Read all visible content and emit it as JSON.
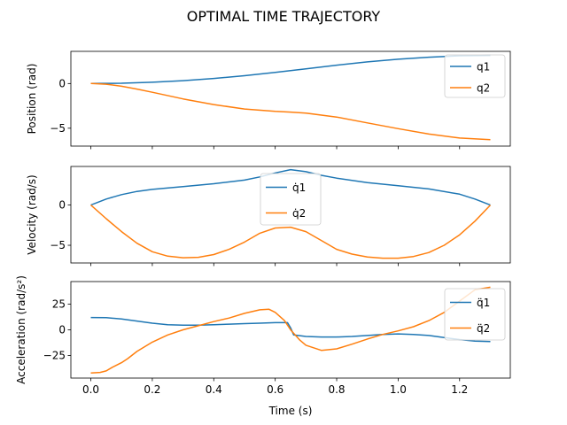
{
  "figure": {
    "title": "OPTIMAL TIME TRAJECTORY",
    "xlabel": "Time (s)"
  },
  "colors": {
    "series1": "#1f77b4",
    "series2": "#ff7f0e",
    "axes": "#000000",
    "legend_border": "#cccccc"
  },
  "chart_data": [
    {
      "type": "line",
      "title": "",
      "xlabel": "",
      "ylabel": "Position (rad)",
      "xlim": [
        -0.065,
        1.365
      ],
      "ylim": [
        -7.0,
        3.6
      ],
      "xticks": [
        0.0,
        0.2,
        0.4,
        0.6,
        0.8,
        1.0,
        1.2
      ],
      "xtick_labels": [
        "",
        "",
        "",
        "",
        "",
        "",
        ""
      ],
      "yticks": [
        -5,
        0
      ],
      "ytick_labels": [
        "−5",
        "0"
      ],
      "legend": {
        "placement": "top-right",
        "entries": [
          "q1",
          "q2"
        ]
      },
      "grid": false,
      "series": [
        {
          "name": "q1",
          "x": [
            0.0,
            0.1,
            0.2,
            0.3,
            0.4,
            0.5,
            0.6,
            0.65,
            0.7,
            0.8,
            0.9,
            1.0,
            1.1,
            1.2,
            1.3
          ],
          "y": [
            0.0,
            0.03,
            0.14,
            0.32,
            0.57,
            0.88,
            1.25,
            1.45,
            1.65,
            2.05,
            2.42,
            2.72,
            2.95,
            3.1,
            3.14
          ]
        },
        {
          "name": "q2",
          "x": [
            0.0,
            0.05,
            0.1,
            0.15,
            0.2,
            0.3,
            0.4,
            0.5,
            0.6,
            0.65,
            0.7,
            0.8,
            0.9,
            1.0,
            1.1,
            1.2,
            1.3
          ],
          "y": [
            0.0,
            -0.08,
            -0.3,
            -0.62,
            -0.98,
            -1.72,
            -2.35,
            -2.85,
            -3.12,
            -3.2,
            -3.3,
            -3.75,
            -4.4,
            -5.05,
            -5.65,
            -6.1,
            -6.28
          ]
        }
      ]
    },
    {
      "type": "line",
      "title": "",
      "xlabel": "",
      "ylabel": "Velocity (rad/s)",
      "xlim": [
        -0.065,
        1.365
      ],
      "ylim": [
        -7.2,
        4.8
      ],
      "xticks": [
        0.0,
        0.2,
        0.4,
        0.6,
        0.8,
        1.0,
        1.2
      ],
      "xtick_labels": [
        "",
        "",
        "",
        "",
        "",
        "",
        ""
      ],
      "yticks": [
        -5,
        0
      ],
      "ytick_labels": [
        "−5",
        "0"
      ],
      "legend": {
        "placement": "top-center",
        "entries": [
          "q̇1",
          "q̇2"
        ]
      },
      "grid": false,
      "series": [
        {
          "name": "q̇1",
          "x": [
            0.0,
            0.05,
            0.1,
            0.15,
            0.2,
            0.3,
            0.4,
            0.5,
            0.55,
            0.6,
            0.65,
            0.7,
            0.75,
            0.8,
            0.9,
            1.0,
            1.1,
            1.2,
            1.25,
            1.3
          ],
          "y": [
            0.0,
            0.75,
            1.3,
            1.7,
            1.95,
            2.3,
            2.65,
            3.1,
            3.5,
            4.0,
            4.4,
            4.15,
            3.7,
            3.35,
            2.8,
            2.4,
            2.0,
            1.35,
            0.75,
            0.0
          ]
        },
        {
          "name": "q̇2",
          "x": [
            0.0,
            0.05,
            0.1,
            0.15,
            0.2,
            0.25,
            0.3,
            0.35,
            0.4,
            0.45,
            0.5,
            0.55,
            0.6,
            0.65,
            0.7,
            0.75,
            0.8,
            0.85,
            0.9,
            0.95,
            1.0,
            1.05,
            1.1,
            1.15,
            1.2,
            1.25,
            1.3
          ],
          "y": [
            0.0,
            -1.7,
            -3.3,
            -4.75,
            -5.8,
            -6.35,
            -6.55,
            -6.5,
            -6.15,
            -5.5,
            -4.6,
            -3.5,
            -2.85,
            -2.75,
            -3.3,
            -4.4,
            -5.5,
            -6.1,
            -6.45,
            -6.6,
            -6.6,
            -6.4,
            -5.9,
            -5.0,
            -3.7,
            -2.0,
            0.0
          ]
        }
      ]
    },
    {
      "type": "line",
      "title": "",
      "xlabel": "Time (s)",
      "ylabel": "Acceleration (rad/s²)",
      "xlim": [
        -0.065,
        1.365
      ],
      "ylim": [
        -47,
        47
      ],
      "xticks": [
        0.0,
        0.2,
        0.4,
        0.6,
        0.8,
        1.0,
        1.2
      ],
      "xtick_labels": [
        "0.0",
        "0.2",
        "0.4",
        "0.6",
        "0.8",
        "1.0",
        "1.2"
      ],
      "yticks": [
        -25,
        0,
        25
      ],
      "ytick_labels": [
        "−25",
        "0",
        "25"
      ],
      "legend": {
        "placement": "top-right",
        "entries": [
          "q̈1",
          "q̈2"
        ]
      },
      "grid": false,
      "series": [
        {
          "name": "q̈1",
          "x": [
            0.0,
            0.05,
            0.1,
            0.15,
            0.2,
            0.25,
            0.3,
            0.35,
            0.4,
            0.45,
            0.5,
            0.55,
            0.6,
            0.64,
            0.65,
            0.66,
            0.7,
            0.75,
            0.8,
            0.85,
            0.9,
            0.95,
            1.0,
            1.05,
            1.1,
            1.15,
            1.2,
            1.25,
            1.3
          ],
          "y": [
            12.0,
            11.8,
            10.5,
            8.5,
            6.5,
            5.0,
            4.5,
            4.5,
            5.0,
            5.5,
            6.0,
            6.5,
            7.0,
            7.0,
            2.0,
            -5.0,
            -6.5,
            -7.0,
            -7.0,
            -6.5,
            -5.5,
            -4.5,
            -4.0,
            -4.5,
            -5.5,
            -7.5,
            -9.5,
            -11.0,
            -11.5
          ]
        },
        {
          "name": "q̈2",
          "x": [
            0.0,
            0.03,
            0.05,
            0.07,
            0.1,
            0.12,
            0.15,
            0.2,
            0.25,
            0.3,
            0.35,
            0.4,
            0.45,
            0.5,
            0.55,
            0.58,
            0.6,
            0.63,
            0.65,
            0.68,
            0.7,
            0.75,
            0.8,
            0.85,
            0.9,
            0.95,
            1.0,
            1.05,
            1.1,
            1.15,
            1.2,
            1.25,
            1.3
          ],
          "y": [
            -42.0,
            -41.5,
            -40.0,
            -36.5,
            -32.0,
            -28.0,
            -21.0,
            -12.0,
            -5.0,
            0.0,
            4.0,
            8.0,
            11.5,
            16.0,
            19.5,
            20.0,
            17.0,
            9.0,
            0.0,
            -10.0,
            -15.0,
            -20.0,
            -18.5,
            -14.0,
            -9.0,
            -4.5,
            -1.0,
            3.0,
            9.0,
            17.0,
            28.0,
            39.0,
            41.5
          ]
        }
      ]
    }
  ]
}
